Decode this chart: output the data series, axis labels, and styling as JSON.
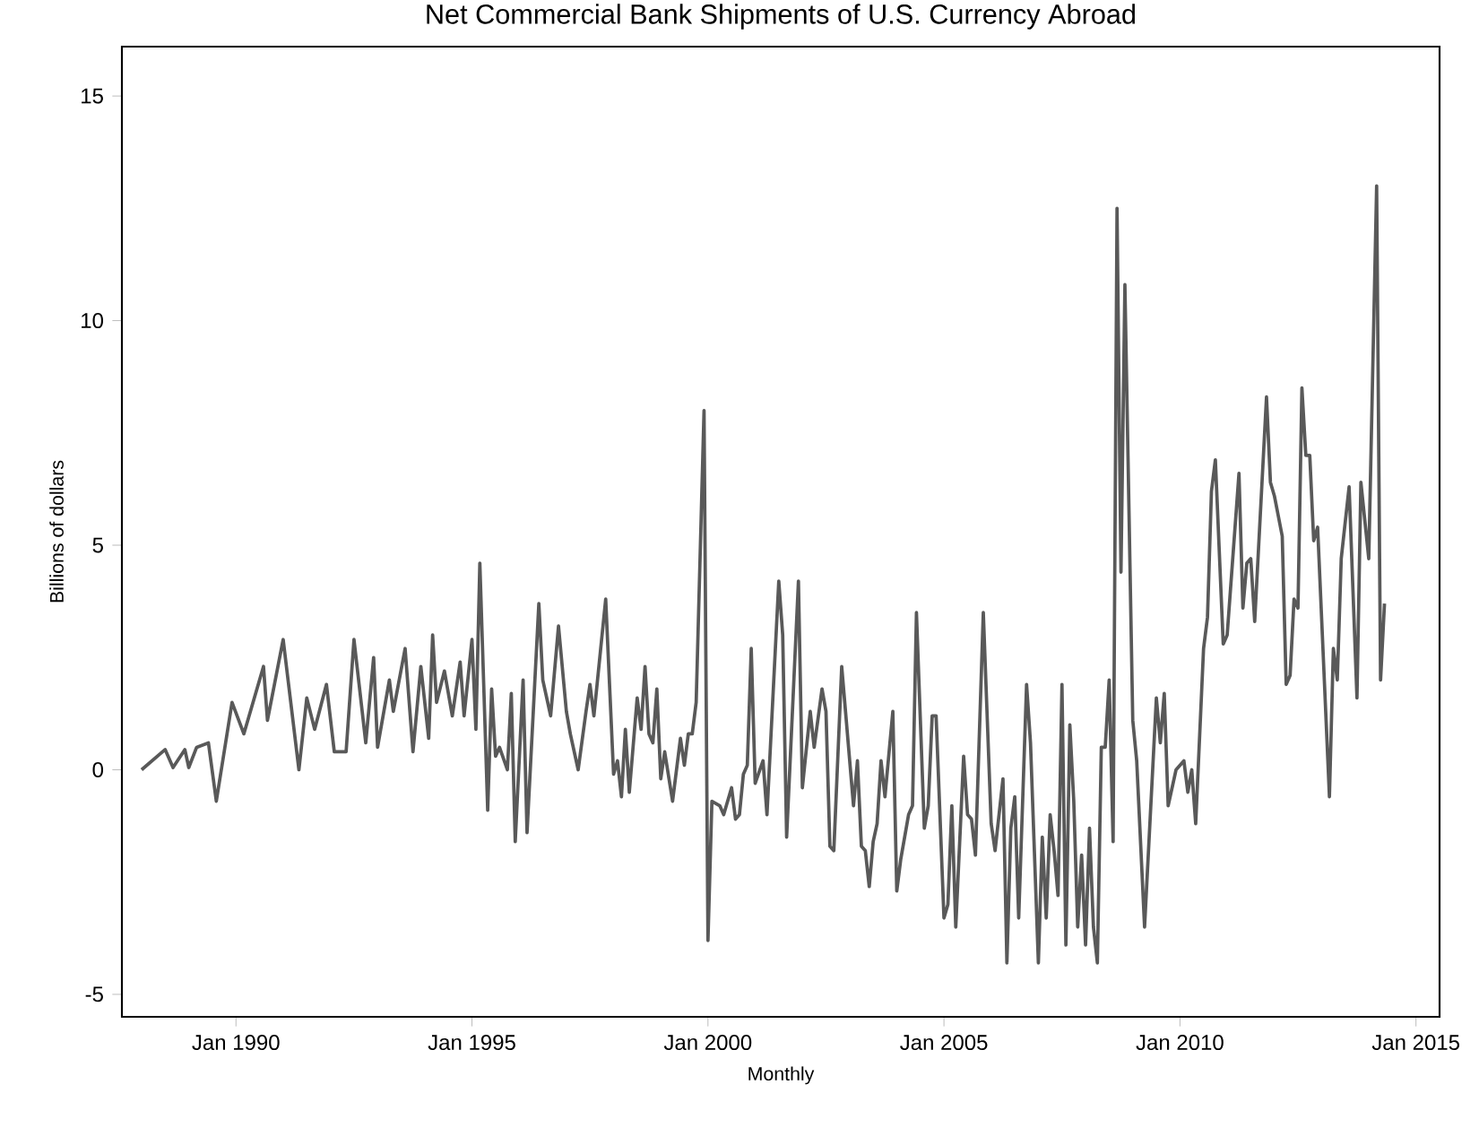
{
  "chart_data": {
    "type": "line",
    "title": "Net Commercial Bank Shipments of U.S. Currency Abroad",
    "xlabel": "Monthly",
    "ylabel": "Billions of dollars",
    "x": [
      "1988-01",
      "1988-07",
      "1988-09",
      "1988-12",
      "1989-01",
      "1989-03",
      "1989-06",
      "1989-08",
      "1989-12",
      "1990-03",
      "1990-08",
      "1990-09",
      "1991-01",
      "1991-05",
      "1991-07",
      "1991-09",
      "1991-12",
      "1992-02",
      "1992-05",
      "1992-07",
      "1992-10",
      "1992-12",
      "1993-01",
      "1993-04",
      "1993-05",
      "1993-08",
      "1993-10",
      "1993-12",
      "1994-02",
      "1994-03",
      "1994-04",
      "1994-06",
      "1994-08",
      "1994-10",
      "1994-11",
      "1995-01",
      "1995-02",
      "1995-03",
      "1995-05",
      "1995-06",
      "1995-07",
      "1995-08",
      "1995-10",
      "1995-11",
      "1995-12",
      "1996-02",
      "1996-03",
      "1996-06",
      "1996-07",
      "1996-09",
      "1996-11",
      "1997-01",
      "1997-02",
      "1997-04",
      "1997-06",
      "1997-07",
      "1997-08",
      "1997-11",
      "1998-01",
      "1998-02",
      "1998-03",
      "1998-04",
      "1998-05",
      "1998-07",
      "1998-08",
      "1998-09",
      "1998-10",
      "1998-11",
      "1998-12",
      "1999-01",
      "1999-02",
      "1999-04",
      "1999-06",
      "1999-07",
      "1999-08",
      "1999-09",
      "1999-10",
      "1999-12",
      "2000-01",
      "2000-02",
      "2000-04",
      "2000-05",
      "2000-07",
      "2000-08",
      "2000-09",
      "2000-10",
      "2000-11",
      "2000-12",
      "2001-01",
      "2001-03",
      "2001-04",
      "2001-07",
      "2001-08",
      "2001-09",
      "2001-12",
      "2002-01",
      "2002-03",
      "2002-04",
      "2002-06",
      "2002-07",
      "2002-08",
      "2002-09",
      "2002-11",
      "2003-02",
      "2003-03",
      "2003-04",
      "2003-05",
      "2003-06",
      "2003-07",
      "2003-08",
      "2003-09",
      "2003-10",
      "2003-12",
      "2004-01",
      "2004-02",
      "2004-04",
      "2004-05",
      "2004-06",
      "2004-07",
      "2004-08",
      "2004-09",
      "2004-10",
      "2004-11",
      "2005-01",
      "2005-02",
      "2005-03",
      "2005-04",
      "2005-06",
      "2005-07",
      "2005-08",
      "2005-09",
      "2005-11",
      "2006-01",
      "2006-02",
      "2006-04",
      "2006-05",
      "2006-06",
      "2006-07",
      "2006-08",
      "2006-10",
      "2006-11",
      "2007-01",
      "2007-02",
      "2007-03",
      "2007-04",
      "2007-05",
      "2007-06",
      "2007-07",
      "2007-08",
      "2007-09",
      "2007-10",
      "2007-11",
      "2007-12",
      "2008-01",
      "2008-02",
      "2008-03",
      "2008-04",
      "2008-05",
      "2008-06",
      "2008-07",
      "2008-08",
      "2008-09",
      "2008-10",
      "2008-11",
      "2009-01",
      "2009-02",
      "2009-04",
      "2009-07",
      "2009-08",
      "2009-09",
      "2009-10",
      "2009-12",
      "2010-02",
      "2010-03",
      "2010-04",
      "2010-05",
      "2010-07",
      "2010-08",
      "2010-09",
      "2010-10",
      "2010-12",
      "2011-01",
      "2011-04",
      "2011-05",
      "2011-06",
      "2011-07",
      "2011-08",
      "2011-11",
      "2011-12",
      "2012-01",
      "2012-03",
      "2012-04",
      "2012-05",
      "2012-06",
      "2012-07",
      "2012-08",
      "2012-09",
      "2012-10",
      "2012-11",
      "2012-12",
      "2013-03",
      "2013-04",
      "2013-05",
      "2013-06",
      "2013-08",
      "2013-10",
      "2013-11",
      "2014-01",
      "2014-03",
      "2014-04",
      "2014-05"
    ],
    "series": [
      {
        "color": "#595959",
        "values": [
          0.0,
          0.45,
          0.05,
          0.45,
          0.05,
          0.5,
          0.6,
          -0.7,
          1.5,
          0.8,
          2.3,
          1.1,
          2.9,
          0.0,
          1.6,
          0.9,
          1.9,
          0.4,
          0.4,
          2.9,
          0.6,
          2.5,
          0.5,
          2.0,
          1.3,
          2.7,
          0.4,
          2.3,
          0.7,
          3.0,
          1.5,
          2.2,
          1.2,
          2.4,
          1.2,
          2.9,
          0.9,
          4.6,
          -0.9,
          1.8,
          0.3,
          0.5,
          0.0,
          1.7,
          -1.6,
          2.0,
          -1.4,
          3.7,
          2.0,
          1.2,
          3.2,
          1.3,
          0.8,
          0.0,
          1.3,
          1.9,
          1.2,
          3.8,
          -0.1,
          0.2,
          -0.6,
          0.9,
          -0.5,
          1.6,
          0.9,
          2.3,
          0.8,
          0.6,
          1.8,
          -0.2,
          0.4,
          -0.7,
          0.7,
          0.1,
          0.8,
          0.8,
          1.5,
          8.0,
          -3.8,
          -0.7,
          -0.8,
          -1.0,
          -0.4,
          -1.1,
          -1.0,
          -0.1,
          0.1,
          2.7,
          -0.3,
          0.2,
          -1.0,
          4.2,
          3.0,
          -1.5,
          4.2,
          -0.4,
          1.3,
          0.5,
          1.8,
          1.3,
          -1.7,
          -1.8,
          2.3,
          -0.8,
          0.2,
          -1.7,
          -1.8,
          -2.6,
          -1.6,
          -1.2,
          0.2,
          -0.6,
          1.3,
          -2.7,
          -2.0,
          -1.0,
          -0.8,
          3.5,
          1.1,
          -1.3,
          -0.8,
          1.2,
          1.2,
          -3.3,
          -3.0,
          -0.8,
          -3.5,
          0.3,
          -1.0,
          -1.1,
          -1.9,
          3.5,
          -1.2,
          -1.8,
          -0.2,
          -4.3,
          -1.3,
          -0.6,
          -3.3,
          1.9,
          0.6,
          -4.3,
          -1.5,
          -3.3,
          -1.0,
          -1.8,
          -2.8,
          1.9,
          -3.9,
          1.0,
          -0.7,
          -3.5,
          -1.9,
          -3.9,
          -1.3,
          -3.5,
          -4.3,
          0.5,
          0.5,
          2.0,
          -1.6,
          12.5,
          4.4,
          10.8,
          1.1,
          0.2,
          -3.5,
          1.6,
          0.6,
          1.7,
          -0.8,
          0.0,
          0.2,
          -0.5,
          0.0,
          -1.2,
          2.7,
          3.4,
          6.2,
          6.9,
          2.8,
          3.0,
          6.6,
          3.6,
          4.6,
          4.7,
          3.3,
          8.3,
          6.4,
          6.1,
          5.2,
          1.9,
          2.1,
          3.8,
          3.6,
          8.5,
          7.0,
          7.0,
          5.1,
          5.4,
          -0.6,
          2.7,
          2.0,
          4.7,
          6.3,
          1.6,
          6.4,
          4.7,
          13.0,
          2.0,
          3.7
        ]
      }
    ],
    "xlim": [
      "1987-08",
      "2015-07"
    ],
    "ylim": [
      -5.5,
      16.1
    ],
    "xticks": [
      {
        "value": "1990-01",
        "label": "Jan 1990"
      },
      {
        "value": "1995-01",
        "label": "Jan 1995"
      },
      {
        "value": "2000-01",
        "label": "Jan 2000"
      },
      {
        "value": "2005-01",
        "label": "Jan 2005"
      },
      {
        "value": "2010-01",
        "label": "Jan 2010"
      },
      {
        "value": "2015-01",
        "label": "Jan 2015"
      }
    ],
    "yticks": [
      -5,
      0,
      5,
      10,
      15
    ],
    "grid": false
  }
}
